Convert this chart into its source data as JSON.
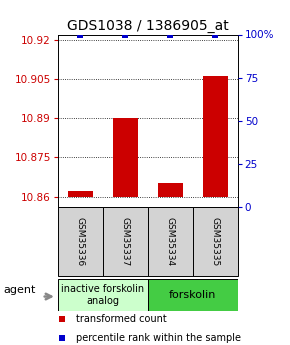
{
  "title": "GDS1038 / 1386905_at",
  "samples": [
    "GSM35336",
    "GSM35337",
    "GSM35334",
    "GSM35335"
  ],
  "bar_values": [
    10.862,
    10.89,
    10.865,
    10.906
  ],
  "bar_baseline": 10.86,
  "percentile_values": [
    100,
    100,
    100,
    100
  ],
  "ylim_left": [
    10.856,
    10.922
  ],
  "ylim_right": [
    0,
    100
  ],
  "yticks_left": [
    10.86,
    10.875,
    10.89,
    10.905,
    10.92
  ],
  "yticks_right": [
    0,
    25,
    50,
    75,
    100
  ],
  "ytick_labels_left": [
    "10.86",
    "10.875",
    "10.89",
    "10.905",
    "10.92"
  ],
  "ytick_labels_right": [
    "0",
    "25",
    "50",
    "75",
    "100%"
  ],
  "bar_color": "#cc0000",
  "percentile_color": "#0000cc",
  "group1_label": "inactive forskolin\nanalog",
  "group2_label": "forskolin",
  "group1_color": "#ccffcc",
  "group2_color": "#44cc44",
  "agent_label": "agent",
  "legend_bar_label": "transformed count",
  "legend_pct_label": "percentile rank within the sample",
  "bar_width": 0.55,
  "title_fontsize": 10,
  "tick_fontsize": 7.5,
  "sample_fontsize": 6.5,
  "group_fontsize": 7,
  "legend_fontsize": 7
}
